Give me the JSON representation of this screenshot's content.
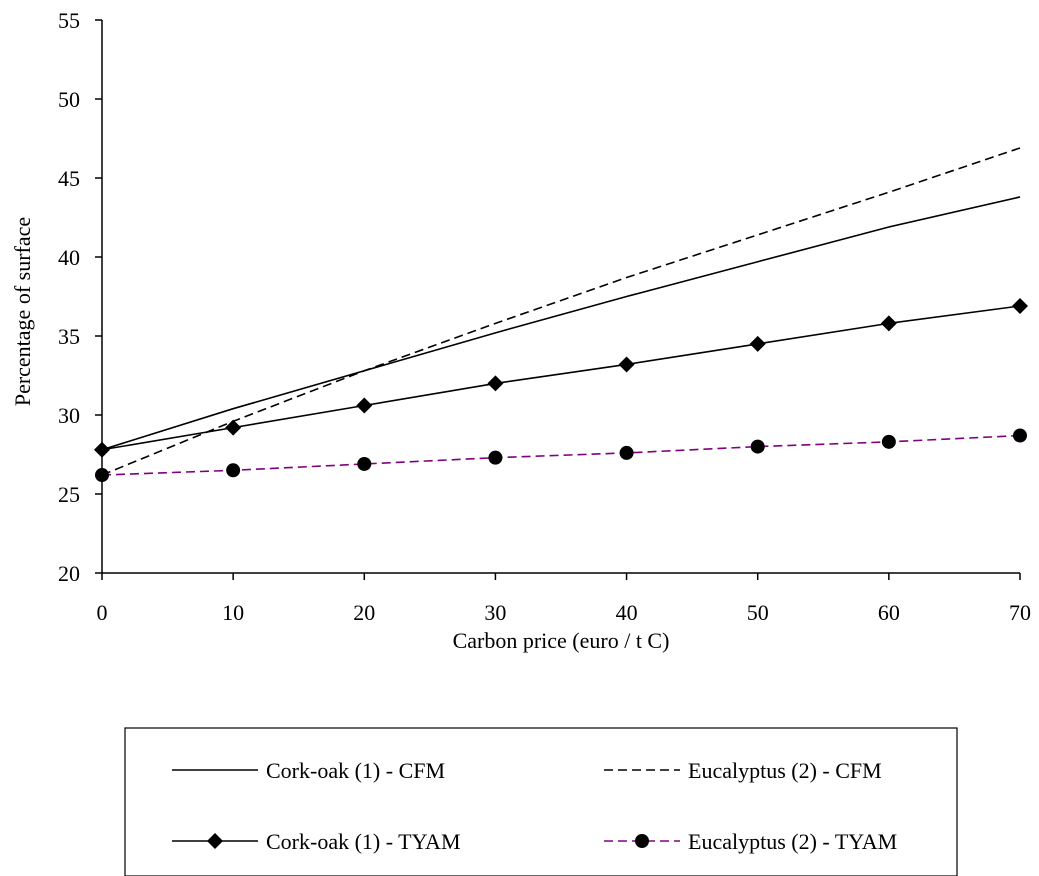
{
  "chart_data": {
    "type": "line",
    "xlabel": "Carbon price (euro / t C)",
    "ylabel": "Percentage of surface",
    "xlim": [
      0,
      70
    ],
    "ylim": [
      20,
      55
    ],
    "xticks": [
      0,
      10,
      20,
      30,
      40,
      50,
      60,
      70
    ],
    "yticks": [
      20,
      25,
      30,
      35,
      40,
      45,
      50,
      55
    ],
    "grid": false,
    "legend_position": "bottom",
    "x": [
      0,
      10,
      20,
      30,
      40,
      50,
      60,
      70
    ],
    "series": [
      {
        "name": "Cork-oak (1) - CFM",
        "values": [
          27.8,
          30.4,
          32.8,
          35.2,
          37.5,
          39.7,
          41.9,
          43.8
        ],
        "style": "solid",
        "marker": "none",
        "color": "#000000"
      },
      {
        "name": "Eucalyptus (2) - CFM",
        "values": [
          26.2,
          29.6,
          32.8,
          35.8,
          38.7,
          41.4,
          44.1,
          46.9
        ],
        "style": "dashed",
        "marker": "none",
        "color": "#000000"
      },
      {
        "name": "Cork-oak (1) - TYAM",
        "values": [
          27.8,
          29.2,
          30.6,
          32.0,
          33.2,
          34.5,
          35.8,
          36.9
        ],
        "style": "solid",
        "marker": "diamond",
        "color": "#000000"
      },
      {
        "name": "Eucalyptus (2) - TYAM",
        "values": [
          26.2,
          26.5,
          26.9,
          27.3,
          27.6,
          28.0,
          28.3,
          28.7
        ],
        "style": "dashed",
        "marker": "circle",
        "color": "#800080"
      }
    ]
  }
}
